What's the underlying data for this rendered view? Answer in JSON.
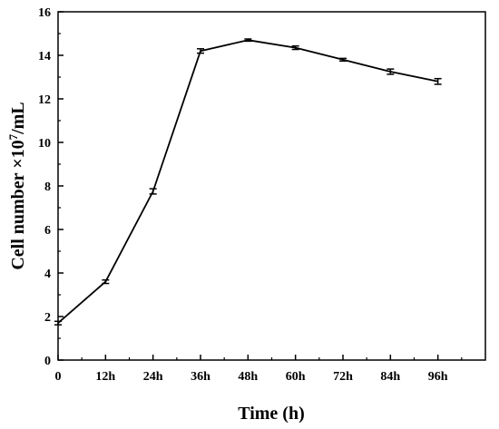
{
  "chart_data": {
    "type": "line",
    "title": "",
    "xlabel": "Time (h)",
    "ylabel": {
      "main": "Cell number ×10",
      "superscript": "7",
      "unit": "/mL"
    },
    "x": [
      0,
      12,
      24,
      36,
      48,
      60,
      72,
      84,
      96
    ],
    "x_tick_labels": [
      "0",
      "12h",
      "24h",
      "36h",
      "48h",
      "60h",
      "72h",
      "84h",
      "96h"
    ],
    "xlim": [
      0,
      108
    ],
    "ylim": [
      0,
      16
    ],
    "y_ticks": [
      0,
      2,
      4,
      6,
      8,
      10,
      12,
      14,
      16
    ],
    "series": [
      {
        "values": [
          1.7,
          3.6,
          7.75,
          14.2,
          14.7,
          14.35,
          13.8,
          13.25,
          12.8
        ],
        "errors": [
          0.08,
          0.08,
          0.12,
          0.1,
          0.05,
          0.08,
          0.06,
          0.12,
          0.13
        ],
        "color": "#000000",
        "marker": "none"
      }
    ],
    "grid": false,
    "legend": "none"
  }
}
